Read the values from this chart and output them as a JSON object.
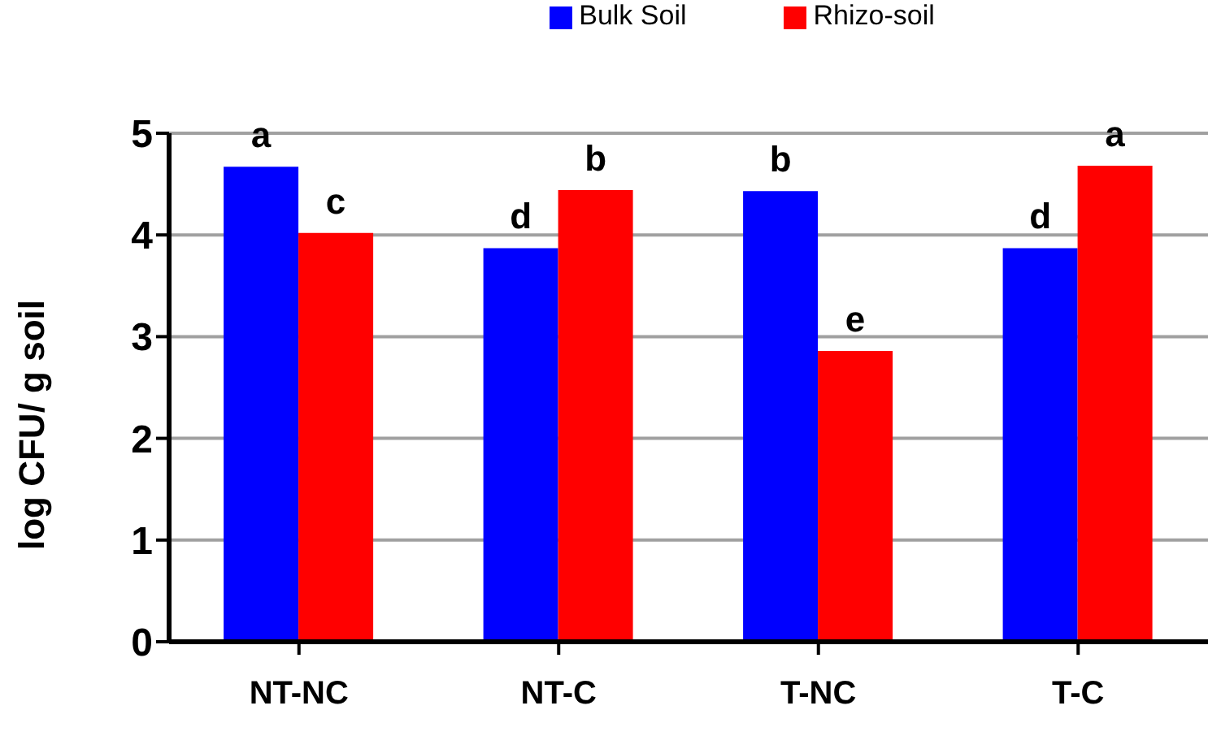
{
  "chart_data": {
    "type": "bar",
    "ylabel": "log CFU/ g soil",
    "categories": [
      "NT-NC",
      "NT-C",
      "T-NC",
      "T-C"
    ],
    "series": [
      {
        "name": "Bulk Soil",
        "color": "#0000ff",
        "values": [
          4.67,
          3.87,
          4.43,
          3.87
        ]
      },
      {
        "name": "Rhizo-soil",
        "color": "#ff0000",
        "values": [
          4.02,
          4.44,
          2.86,
          4.68
        ]
      }
    ],
    "ylim": [
      0,
      5
    ],
    "yticks": [
      0,
      1,
      2,
      3,
      4,
      5
    ],
    "grid": "y",
    "legend": "top",
    "annotations": [
      {
        "text": "a",
        "x": "NT-NC",
        "y": 4.67
      },
      {
        "text": "c",
        "x": "NT-NC",
        "y": 4.02
      },
      {
        "text": "d",
        "x": "NT-C",
        "y": 3.87
      },
      {
        "text": "b",
        "x": "NT-C",
        "y": 4.44
      },
      {
        "text": "b",
        "x": "T-NC",
        "y": 4.43
      },
      {
        "text": "e",
        "x": "T-NC",
        "y": 2.86
      },
      {
        "text": "d",
        "x": "T-C",
        "y": 3.87
      },
      {
        "text": "a",
        "x": "T-C",
        "y": 4.68
      }
    ]
  }
}
